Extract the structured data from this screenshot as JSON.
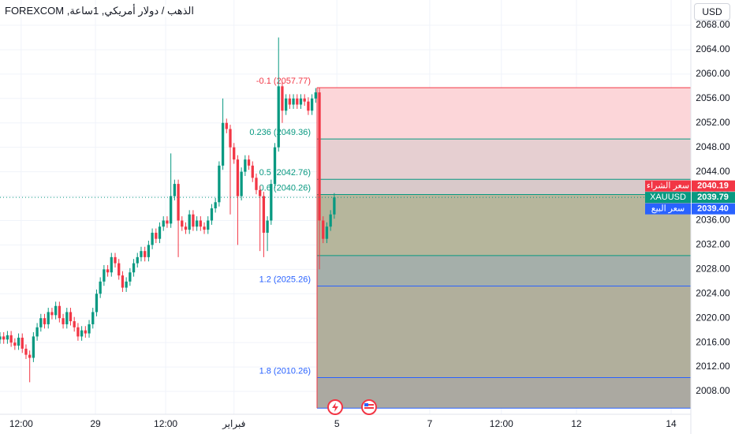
{
  "header": {
    "title": "الذهب / دولار أمريكي, 1ساعة, FOREXCOM",
    "currency": "USD"
  },
  "chart_data": {
    "type": "candlestick",
    "xlim": [
      0,
      186
    ],
    "xticks": [
      {
        "value": 5.7,
        "label": "12:00"
      },
      {
        "value": 25.7,
        "label": "29"
      },
      {
        "value": 44.6,
        "label": "12:00"
      },
      {
        "value": 63,
        "label": "فبراير"
      },
      {
        "value": 90.7,
        "label": "5"
      },
      {
        "value": 115.7,
        "label": "7"
      },
      {
        "value": 135,
        "label": "12:00"
      },
      {
        "value": 155.2,
        "label": "12"
      },
      {
        "value": 180.7,
        "label": "14"
      }
    ],
    "ylim": [
      2004.25,
      2072.14
    ],
    "yticks": [
      {
        "value": 2008,
        "label": "2008.00"
      },
      {
        "value": 2012,
        "label": "2012.00"
      },
      {
        "value": 2016,
        "label": "2016.00"
      },
      {
        "value": 2020,
        "label": "2020.00"
      },
      {
        "value": 2024,
        "label": "2024.00"
      },
      {
        "value": 2028,
        "label": "2028.00"
      },
      {
        "value": 2032,
        "label": "2032.00"
      },
      {
        "value": 2036,
        "label": "2036.00"
      },
      {
        "value": 2040,
        "label": "2040.00"
      },
      {
        "value": 2044,
        "label": "2044.00"
      },
      {
        "value": 2048,
        "label": "2048.00"
      },
      {
        "value": 2052,
        "label": "2052.00"
      },
      {
        "value": 2056,
        "label": "2056.00"
      },
      {
        "value": 2060,
        "label": "2060.00"
      },
      {
        "value": 2064,
        "label": "2064.00"
      },
      {
        "value": 2068,
        "label": "2068.00"
      }
    ],
    "grid": true,
    "series": [
      {
        "name": "XAUUSD",
        "up_color": "#089981",
        "down_color": "#f23645",
        "ohlc": [
          [
            2016.5,
            2017.7,
            2015.8,
            2017
          ],
          [
            2017,
            2017.7,
            2015.8,
            2016.5
          ],
          [
            2016.5,
            2017.9,
            2015.8,
            2017.2
          ],
          [
            2017.2,
            2017.9,
            2015.3,
            2016
          ],
          [
            2016,
            2016.7,
            2014.8,
            2015.5
          ],
          [
            2015.5,
            2017.5,
            2014.8,
            2016.8
          ],
          [
            2016.8,
            2017.5,
            2014.3,
            2015
          ],
          [
            2015,
            2015.7,
            2013.3,
            2014
          ],
          [
            2014,
            2014.7,
            2009.5,
            2013.5
          ],
          [
            2013.5,
            2017.7,
            2012.8,
            2017
          ],
          [
            2017,
            2019.2,
            2016.3,
            2018.5
          ],
          [
            2018.5,
            2020.7,
            2017.8,
            2020
          ],
          [
            2020,
            2020.7,
            2018.3,
            2019
          ],
          [
            2019,
            2021.7,
            2018.3,
            2021
          ],
          [
            2021,
            2021.7,
            2019.8,
            2020.5
          ],
          [
            2020.5,
            2022.7,
            2019.8,
            2022
          ],
          [
            2022,
            2022.7,
            2019.3,
            2020
          ],
          [
            2020,
            2020.7,
            2018.3,
            2019
          ],
          [
            2019,
            2021.7,
            2018.3,
            2021
          ],
          [
            2021,
            2021.7,
            2018.8,
            2019.5
          ],
          [
            2019.5,
            2020.2,
            2017.8,
            2018.5
          ],
          [
            2018.5,
            2019.2,
            2016.3,
            2017
          ],
          [
            2017,
            2018.7,
            2016.3,
            2018
          ],
          [
            2018,
            2018.7,
            2016.8,
            2017.5
          ],
          [
            2017.5,
            2019.7,
            2016.8,
            2019
          ],
          [
            2019,
            2021.7,
            2018.3,
            2021
          ],
          [
            2021,
            2024.7,
            2020.3,
            2024
          ],
          [
            2024,
            2026.7,
            2023.3,
            2026
          ],
          [
            2026,
            2028.7,
            2025.3,
            2028
          ],
          [
            2028,
            2028.7,
            2026.8,
            2027.5
          ],
          [
            2027.5,
            2030.7,
            2026.8,
            2030
          ],
          [
            2030,
            2030.7,
            2028.3,
            2029
          ],
          [
            2029,
            2029.7,
            2026.3,
            2027
          ],
          [
            2027,
            2027.7,
            2024.3,
            2025
          ],
          [
            2025,
            2026.7,
            2024.3,
            2026
          ],
          [
            2026,
            2028.2,
            2025.3,
            2027.5
          ],
          [
            2027.5,
            2029.7,
            2026.8,
            2029
          ],
          [
            2029,
            2030.7,
            2028.3,
            2030
          ],
          [
            2030,
            2031.7,
            2029.3,
            2031
          ],
          [
            2031,
            2031.7,
            2029.3,
            2030
          ],
          [
            2030,
            2032.7,
            2029.3,
            2032
          ],
          [
            2032,
            2034.7,
            2031.3,
            2034
          ],
          [
            2034,
            2034.7,
            2032.3,
            2033
          ],
          [
            2033,
            2035.7,
            2032.3,
            2035
          ],
          [
            2035,
            2036.7,
            2034.3,
            2036
          ],
          [
            2036,
            2036.7,
            2034.8,
            2035.5
          ],
          [
            2035.5,
            2047,
            2034.8,
            2040
          ],
          [
            2040,
            2042.7,
            2039.3,
            2042
          ],
          [
            2042,
            2042.7,
            2030,
            2036
          ],
          [
            2036,
            2036.7,
            2034.3,
            2035
          ],
          [
            2035,
            2035.7,
            2033.8,
            2034.5
          ],
          [
            2034.5,
            2037.7,
            2033.8,
            2037
          ],
          [
            2037,
            2037.7,
            2034.3,
            2035
          ],
          [
            2035,
            2036.7,
            2034.3,
            2036
          ],
          [
            2036,
            2036.7,
            2034.3,
            2035
          ],
          [
            2035,
            2035.7,
            2033.8,
            2034.5
          ],
          [
            2034.5,
            2036.7,
            2033.8,
            2036
          ],
          [
            2036,
            2038.7,
            2035.3,
            2038
          ],
          [
            2038,
            2039.7,
            2037.3,
            2039
          ],
          [
            2039,
            2045.7,
            2038.3,
            2045
          ],
          [
            2045,
            2056,
            2044.3,
            2052
          ],
          [
            2052,
            2052.7,
            2050.3,
            2051
          ],
          [
            2051,
            2051.7,
            2037,
            2048
          ],
          [
            2048,
            2048.7,
            2045.3,
            2046
          ],
          [
            2046,
            2046.7,
            2032,
            2040
          ],
          [
            2040,
            2044.7,
            2039.3,
            2044
          ],
          [
            2044,
            2046.7,
            2043.3,
            2046
          ],
          [
            2046,
            2046.7,
            2044.3,
            2045
          ],
          [
            2045,
            2045.7,
            2042.3,
            2043
          ],
          [
            2043,
            2043.7,
            2040.3,
            2041
          ],
          [
            2041,
            2041.7,
            2031,
            2040
          ],
          [
            2040,
            2040.7,
            2030,
            2034
          ],
          [
            2034,
            2036.7,
            2031,
            2036
          ],
          [
            2036,
            2042.7,
            2035.3,
            2042
          ],
          [
            2042,
            2048.7,
            2041.3,
            2048
          ],
          [
            2048,
            2066,
            2047.3,
            2058
          ],
          [
            2058,
            2058.7,
            2052,
            2054
          ],
          [
            2054,
            2056.7,
            2053.3,
            2056
          ],
          [
            2056,
            2056.7,
            2054.3,
            2055
          ],
          [
            2055,
            2056.7,
            2054.3,
            2056
          ],
          [
            2056,
            2056.7,
            2054.3,
            2055
          ],
          [
            2055,
            2056.7,
            2054.3,
            2056
          ],
          [
            2056,
            2056.7,
            2054.8,
            2055.5
          ],
          [
            2055.5,
            2056.2,
            2053.3,
            2054
          ],
          [
            2054,
            2056.7,
            2053.3,
            2056
          ],
          [
            2056,
            2057.7,
            2055.3,
            2057
          ],
          [
            2057,
            2057.7,
            2028,
            2036
          ],
          [
            2036,
            2036.7,
            2032.3,
            2033
          ],
          [
            2033,
            2035.7,
            2032.3,
            2035
          ],
          [
            2035,
            2037.7,
            2034.3,
            2037
          ],
          [
            2037,
            2040.5,
            2036.3,
            2039.79
          ]
        ]
      }
    ],
    "fib_levels": [
      {
        "label": "-0.1 (2057.77)",
        "price": 2057.77,
        "color": "#f23645",
        "fill": "#fcd6d9"
      },
      {
        "label": "0.236 (2049.36)",
        "price": 2049.36,
        "color": "#089981",
        "fill": "#e6cfd1"
      },
      {
        "label": "0.5 (2042.76)",
        "price": 2042.76,
        "color": "#089981",
        "fill": "#d9c9ca"
      },
      {
        "label": "0.6 (2040.26)",
        "price": 2040.26,
        "color": "#089981",
        "fill": "#b6b69c"
      },
      {
        "price": 2030.26,
        "color": "#089981",
        "fill": "#a5afaa"
      },
      {
        "label": "1.2 (2025.26)",
        "price": 2025.26,
        "color": "#2962ff",
        "fill": "#b1af9c"
      },
      {
        "label": "1.8 (2010.26)",
        "price": 2010.26,
        "color": "#2962ff",
        "fill": "#aba9a1"
      },
      {
        "price": 2005.26,
        "color": "#2962ff",
        "fill": "#aba9a1"
      }
    ],
    "quotes": [
      {
        "name": "سعر الشراء",
        "value": 2040.19,
        "color": "#f23645"
      },
      {
        "name": "XAUUSD",
        "value": 2039.79,
        "color": "#089981"
      },
      {
        "name": "سعر البيع",
        "value": 2039.4,
        "label": "2039.40",
        "color": "#2962ff"
      }
    ]
  }
}
